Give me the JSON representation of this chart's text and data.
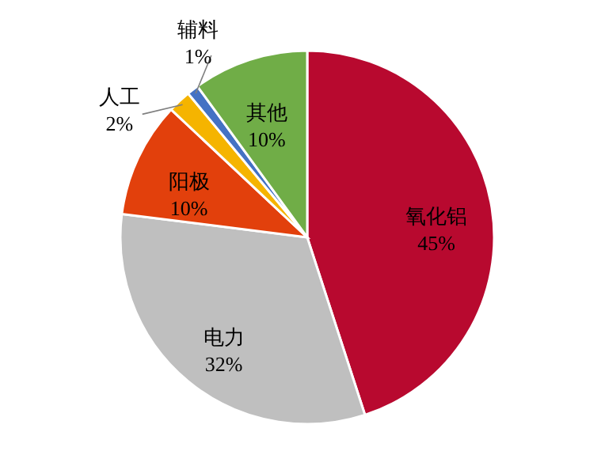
{
  "chart_data": {
    "type": "pie",
    "categories": [
      "氧化铝",
      "电力",
      "阳极",
      "人工",
      "辅料",
      "其他"
    ],
    "values": [
      45,
      32,
      10,
      2,
      1,
      10
    ],
    "colors": [
      "#b8092f",
      "#bfbfbf",
      "#e2400c",
      "#f5b400",
      "#4472c4",
      "#70ad47"
    ],
    "value_labels": [
      "45%",
      "32%",
      "10%",
      "2%",
      "1%",
      "10%"
    ]
  }
}
